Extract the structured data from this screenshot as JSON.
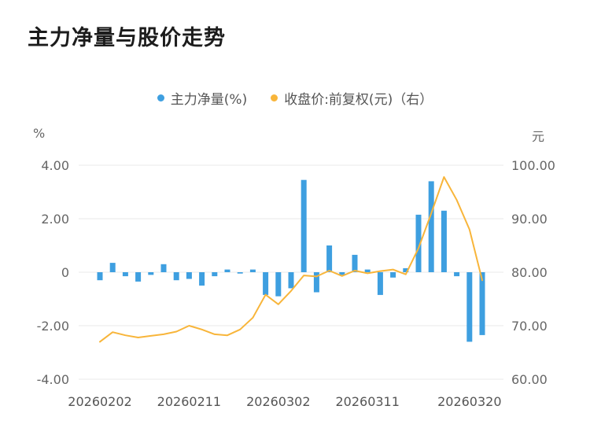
{
  "chart_data": {
    "type": "bar",
    "title": "主力净量与股价走势",
    "legend": [
      {
        "label": "主力净量(%)",
        "marker": "circle-icon"
      },
      {
        "label": "收盘价:前复权(元)（右）",
        "marker": "circle-icon"
      }
    ],
    "grid_color": "#e8e8e8",
    "left_axis": {
      "unit": "%",
      "min": -4,
      "max": 4,
      "ticks": [
        4,
        2,
        0,
        -2,
        -4
      ],
      "tick_labels": [
        "4.00",
        "2.00",
        "0",
        "-2.00",
        "-4.00"
      ]
    },
    "right_axis": {
      "unit": "元",
      "min": 60,
      "max": 100,
      "ticks": [
        100,
        90,
        80,
        70,
        60
      ],
      "tick_labels": [
        "100.00",
        "90.00",
        "80.00",
        "70.00",
        "60.00"
      ]
    },
    "x_axis": {
      "labels": [
        {
          "text": "20260202",
          "index": 0
        },
        {
          "text": "20260211",
          "index": 7
        },
        {
          "text": "20260302",
          "index": 14
        },
        {
          "text": "20260311",
          "index": 21
        },
        {
          "text": "20260320",
          "index": 29
        }
      ]
    },
    "series": [
      {
        "name": "主力净量(%)",
        "type": "bar",
        "axis": "left",
        "color": "#3e9fe0",
        "values": [
          -0.3,
          0.35,
          -0.15,
          -0.35,
          -0.1,
          0.3,
          -0.3,
          -0.25,
          -0.5,
          -0.15,
          0.1,
          -0.05,
          0.1,
          -0.85,
          -0.9,
          -0.6,
          3.45,
          -0.75,
          1.0,
          -0.1,
          0.65,
          0.1,
          -0.85,
          -0.2,
          0.15,
          2.15,
          3.4,
          2.3,
          -0.15,
          -2.6,
          -2.35
        ]
      },
      {
        "name": "收盘价:前复权(元)（右）",
        "type": "line",
        "axis": "right",
        "color": "#f8b53a",
        "values": [
          67.0,
          68.8,
          68.2,
          67.8,
          68.1,
          68.4,
          68.9,
          70.0,
          69.3,
          68.4,
          68.2,
          69.3,
          71.5,
          75.8,
          74.0,
          76.5,
          79.4,
          79.2,
          80.3,
          79.3,
          80.3,
          79.8,
          80.2,
          80.5,
          79.6,
          84.5,
          91.0,
          97.8,
          93.5,
          88.0,
          78.5
        ]
      }
    ]
  }
}
